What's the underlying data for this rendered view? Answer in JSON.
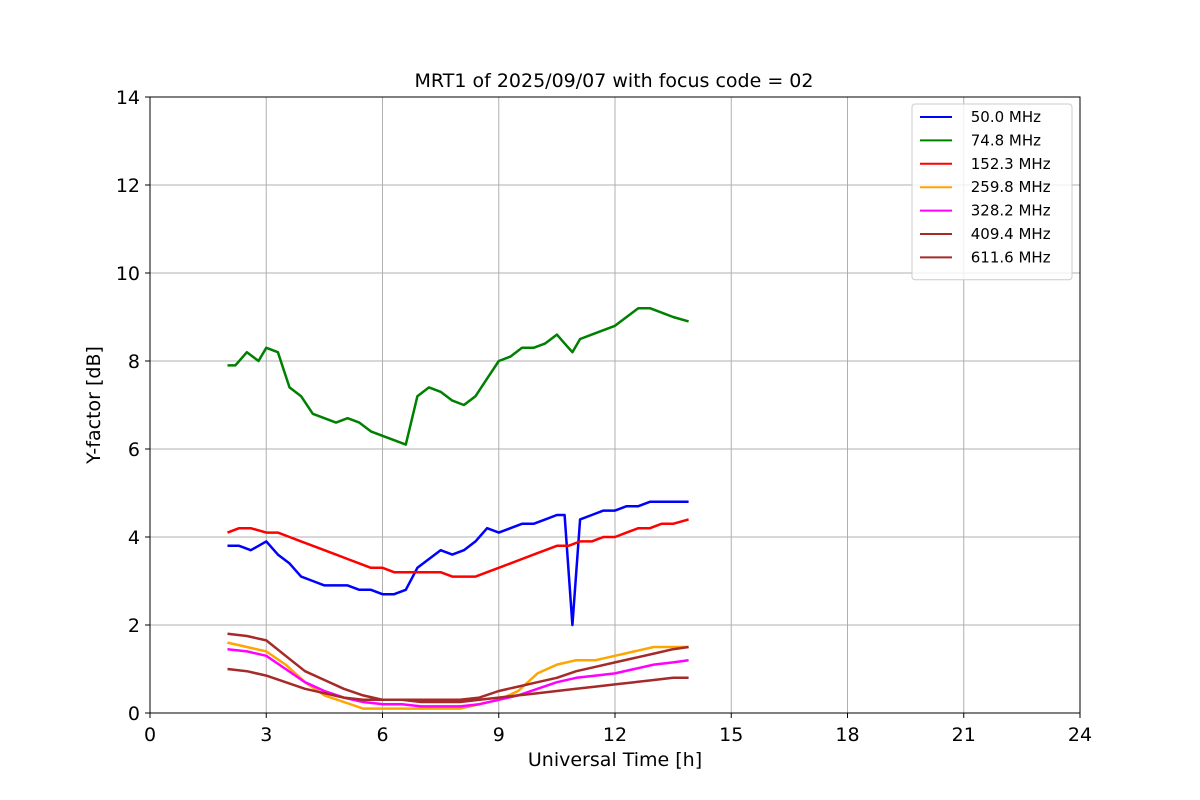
{
  "chart_data": {
    "type": "line",
    "title": "MRT1 of 2025/09/07 with focus code = 02",
    "xlabel": "Universal Time [h]",
    "ylabel": "Y-factor [dB]",
    "xlim": [
      0,
      24
    ],
    "ylim": [
      0,
      14
    ],
    "xticks": [
      0,
      3,
      6,
      9,
      12,
      15,
      18,
      21,
      24
    ],
    "yticks": [
      0,
      2,
      4,
      6,
      8,
      10,
      12,
      14
    ],
    "grid": true,
    "legend_position": "top-right",
    "series": [
      {
        "name": " 50.0 MHz",
        "color": "#0000ff",
        "x": [
          2.0,
          2.3,
          2.6,
          3.0,
          3.3,
          3.6,
          3.9,
          4.2,
          4.5,
          4.8,
          5.1,
          5.4,
          5.7,
          6.0,
          6.3,
          6.6,
          6.9,
          7.2,
          7.5,
          7.8,
          8.1,
          8.4,
          8.7,
          9.0,
          9.3,
          9.6,
          9.9,
          10.2,
          10.5,
          10.7,
          10.9,
          11.1,
          11.4,
          11.7,
          12.0,
          12.3,
          12.6,
          12.9,
          13.2,
          13.5,
          13.9
        ],
        "y": [
          3.8,
          3.8,
          3.7,
          3.9,
          3.6,
          3.4,
          3.1,
          3.0,
          2.9,
          2.9,
          2.9,
          2.8,
          2.8,
          2.7,
          2.7,
          2.8,
          3.3,
          3.5,
          3.7,
          3.6,
          3.7,
          3.9,
          4.2,
          4.1,
          4.2,
          4.3,
          4.3,
          4.4,
          4.5,
          4.5,
          2.0,
          4.4,
          4.5,
          4.6,
          4.6,
          4.7,
          4.7,
          4.8,
          4.8,
          4.8,
          4.8
        ]
      },
      {
        "name": " 74.8 MHz",
        "color": "#008000",
        "x": [
          2.0,
          2.2,
          2.5,
          2.8,
          3.0,
          3.3,
          3.6,
          3.9,
          4.2,
          4.5,
          4.8,
          5.1,
          5.4,
          5.7,
          6.0,
          6.3,
          6.6,
          6.9,
          7.2,
          7.5,
          7.8,
          8.1,
          8.4,
          8.7,
          9.0,
          9.3,
          9.6,
          9.9,
          10.2,
          10.5,
          10.7,
          10.9,
          11.1,
          11.4,
          11.7,
          12.0,
          12.3,
          12.6,
          12.9,
          13.2,
          13.5,
          13.9
        ],
        "y": [
          7.9,
          7.9,
          8.2,
          8.0,
          8.3,
          8.2,
          7.4,
          7.2,
          6.8,
          6.7,
          6.6,
          6.7,
          6.6,
          6.4,
          6.3,
          6.2,
          6.1,
          7.2,
          7.4,
          7.3,
          7.1,
          7.0,
          7.2,
          7.6,
          8.0,
          8.1,
          8.3,
          8.3,
          8.4,
          8.6,
          8.4,
          8.2,
          8.5,
          8.6,
          8.7,
          8.8,
          9.0,
          9.2,
          9.2,
          9.1,
          9.0,
          8.9
        ]
      },
      {
        "name": " 152.3 MHz",
        "color": "#ff0000",
        "x": [
          2.0,
          2.3,
          2.6,
          3.0,
          3.3,
          3.6,
          3.9,
          4.2,
          4.5,
          4.8,
          5.1,
          5.4,
          5.7,
          6.0,
          6.3,
          6.6,
          6.9,
          7.2,
          7.5,
          7.8,
          8.1,
          8.4,
          8.7,
          9.0,
          9.3,
          9.6,
          9.9,
          10.2,
          10.5,
          10.8,
          11.1,
          11.4,
          11.7,
          12.0,
          12.3,
          12.6,
          12.9,
          13.2,
          13.5,
          13.9
        ],
        "y": [
          4.1,
          4.2,
          4.2,
          4.1,
          4.1,
          4.0,
          3.9,
          3.8,
          3.7,
          3.6,
          3.5,
          3.4,
          3.3,
          3.3,
          3.2,
          3.2,
          3.2,
          3.2,
          3.2,
          3.1,
          3.1,
          3.1,
          3.2,
          3.3,
          3.4,
          3.5,
          3.6,
          3.7,
          3.8,
          3.8,
          3.9,
          3.9,
          4.0,
          4.0,
          4.1,
          4.2,
          4.2,
          4.3,
          4.3,
          4.4
        ]
      },
      {
        "name": " 259.8 MHz",
        "color": "#ffa500",
        "x": [
          2.0,
          2.5,
          3.0,
          3.5,
          4.0,
          4.5,
          5.0,
          5.5,
          6.0,
          6.5,
          7.0,
          7.5,
          8.0,
          8.5,
          9.0,
          9.5,
          10.0,
          10.5,
          11.0,
          11.5,
          12.0,
          12.5,
          13.0,
          13.5,
          13.9
        ],
        "y": [
          1.6,
          1.5,
          1.4,
          1.1,
          0.7,
          0.4,
          0.25,
          0.1,
          0.1,
          0.1,
          0.1,
          0.1,
          0.1,
          0.2,
          0.3,
          0.5,
          0.9,
          1.1,
          1.2,
          1.2,
          1.3,
          1.4,
          1.5,
          1.5,
          1.5
        ]
      },
      {
        "name": " 328.2 MHz",
        "color": "#ff00ff",
        "x": [
          2.0,
          2.5,
          3.0,
          3.5,
          4.0,
          4.5,
          5.0,
          5.5,
          6.0,
          6.5,
          7.0,
          7.5,
          8.0,
          8.5,
          9.0,
          9.5,
          10.0,
          10.5,
          11.0,
          11.5,
          12.0,
          12.5,
          13.0,
          13.5,
          13.9
        ],
        "y": [
          1.45,
          1.4,
          1.3,
          1.0,
          0.7,
          0.5,
          0.35,
          0.25,
          0.2,
          0.2,
          0.15,
          0.15,
          0.15,
          0.2,
          0.3,
          0.4,
          0.55,
          0.7,
          0.8,
          0.85,
          0.9,
          1.0,
          1.1,
          1.15,
          1.2
        ]
      },
      {
        "name": " 409.4 MHz",
        "color": "#a52a2a",
        "x": [
          2.0,
          2.5,
          3.0,
          3.5,
          4.0,
          4.5,
          5.0,
          5.5,
          6.0,
          6.5,
          7.0,
          7.5,
          8.0,
          8.5,
          9.0,
          9.5,
          10.0,
          10.5,
          11.0,
          11.5,
          12.0,
          12.5,
          13.0,
          13.5,
          13.9
        ],
        "y": [
          1.0,
          0.95,
          0.85,
          0.7,
          0.55,
          0.45,
          0.35,
          0.3,
          0.3,
          0.3,
          0.25,
          0.25,
          0.25,
          0.3,
          0.35,
          0.4,
          0.45,
          0.5,
          0.55,
          0.6,
          0.65,
          0.7,
          0.75,
          0.8,
          0.8
        ]
      },
      {
        "name": " 611.6 MHz",
        "color": "#a52a2a",
        "x": [
          2.0,
          2.5,
          3.0,
          3.5,
          4.0,
          4.5,
          5.0,
          5.5,
          6.0,
          6.5,
          7.0,
          7.5,
          8.0,
          8.5,
          9.0,
          9.5,
          10.0,
          10.5,
          11.0,
          11.5,
          12.0,
          12.5,
          13.0,
          13.5,
          13.9
        ],
        "y": [
          1.8,
          1.75,
          1.65,
          1.3,
          0.95,
          0.75,
          0.55,
          0.4,
          0.3,
          0.3,
          0.3,
          0.3,
          0.3,
          0.35,
          0.5,
          0.6,
          0.7,
          0.8,
          0.95,
          1.05,
          1.15,
          1.25,
          1.35,
          1.45,
          1.5
        ]
      }
    ]
  }
}
